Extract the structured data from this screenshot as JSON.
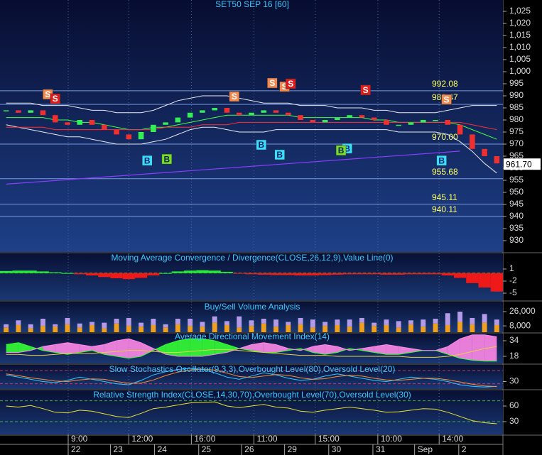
{
  "chart_data": [
    {
      "type": "line",
      "title": "SET50 SEP 16  [60]",
      "x": [
        0,
        1,
        2,
        3,
        4,
        5,
        6,
        7,
        8,
        9,
        10,
        11,
        12,
        13,
        14,
        15,
        16,
        17,
        18,
        19,
        20,
        21,
        22,
        23,
        24,
        25,
        26,
        27,
        28,
        29,
        30,
        31,
        32,
        33,
        34,
        35,
        36,
        37,
        38,
        39,
        40
      ],
      "xlim": [
        -0.5,
        40.5
      ],
      "values": [
        984,
        983,
        984,
        982,
        979,
        978,
        980,
        978,
        976,
        974,
        972,
        975,
        978,
        979,
        981,
        983,
        984,
        985,
        983,
        982,
        983,
        984,
        983,
        982,
        980,
        979,
        980,
        981,
        982,
        981,
        980,
        978,
        978,
        979,
        980,
        980,
        978,
        974,
        968,
        965,
        962
      ],
      "up_color": "#33ee55",
      "down_color": "#ee3030",
      "series": [
        {
          "color": "#e8e8f0",
          "values": [
            987,
            987,
            987,
            986,
            986,
            986,
            985,
            984,
            984,
            983,
            983,
            983,
            984,
            986,
            988,
            989,
            990,
            990,
            990,
            989,
            988,
            987,
            987,
            987,
            986,
            986,
            986,
            985,
            985,
            985,
            984,
            984,
            983,
            983,
            983,
            983,
            984,
            985,
            986,
            986,
            986
          ]
        },
        {
          "color": "#e8e8f0",
          "values": [
            978,
            977,
            976,
            975,
            974,
            973,
            973,
            972,
            971,
            970,
            970,
            970,
            971,
            972,
            974,
            976,
            977,
            977,
            976,
            975,
            975,
            975,
            976,
            976,
            976,
            976,
            976,
            976,
            976,
            976,
            976,
            976,
            975,
            975,
            975,
            975,
            974,
            971,
            967,
            962,
            958
          ]
        },
        {
          "color": "#44ff44",
          "values": [
            981,
            981,
            981,
            981,
            980,
            980,
            979,
            979,
            978,
            977,
            976,
            976,
            977,
            977,
            978,
            979,
            980,
            981,
            982,
            982,
            982,
            982,
            982,
            982,
            981,
            981,
            981,
            981,
            981,
            981,
            980,
            980,
            979,
            979,
            979,
            979,
            979,
            978,
            976,
            974,
            972
          ]
        },
        {
          "color": "#ff3030",
          "values": [
            977,
            977,
            977,
            977,
            976,
            976,
            976,
            976,
            976,
            976,
            976,
            976,
            976,
            977,
            977,
            977,
            978,
            978,
            978,
            979,
            979,
            979,
            979,
            979,
            979,
            979,
            979,
            979,
            979,
            979,
            979,
            979,
            979,
            979,
            979,
            979,
            979,
            979,
            978,
            977,
            976
          ]
        }
      ],
      "trend": {
        "color": "#8a3cff",
        "x": [
          0,
          37
        ],
        "values": [
          953.4,
          967.1
        ]
      },
      "price_levels": [
        992.08,
        986.47,
        {
          "value": 970,
          "label": "970.00"
        },
        955.68,
        945.11,
        940.11
      ],
      "last_price": {
        "value": 961.7,
        "label": "961.70"
      },
      "signals": [
        {
          "x": 3.4,
          "price": 990.6,
          "label": "S",
          "color": "#f08a50"
        },
        {
          "x": 4.0,
          "price": 988.8,
          "label": "S",
          "color": "#e01c1c"
        },
        {
          "x": 18.6,
          "price": 989.7,
          "label": "S",
          "color": "#f08a50"
        },
        {
          "x": 21.7,
          "price": 995.3,
          "label": "S",
          "color": "#f08a50"
        },
        {
          "x": 22.7,
          "price": 993.8,
          "label": "S",
          "color": "#f08a50"
        },
        {
          "x": 23.2,
          "price": 995.0,
          "label": "S",
          "color": "#e01c1c"
        },
        {
          "x": 29.3,
          "price": 992.4,
          "label": "S",
          "color": "#e01c1c"
        },
        {
          "x": 35.9,
          "price": 988.5,
          "label": "S",
          "color": "#f08a50"
        },
        {
          "x": 11.5,
          "price": 963.2,
          "label": "B",
          "color": "#38e0ff"
        },
        {
          "x": 13.1,
          "price": 963.8,
          "label": "B",
          "color": "#77e022"
        },
        {
          "x": 20.8,
          "price": 969.7,
          "label": "B",
          "color": "#38e0ff"
        },
        {
          "x": 22.3,
          "price": 965.6,
          "label": "B",
          "color": "#38e0ff"
        },
        {
          "x": 27.8,
          "price": 968.2,
          "label": "B",
          "color": "#38e0ff"
        },
        {
          "x": 27.3,
          "price": 967.4,
          "label": "B",
          "color": "#77e022"
        },
        {
          "x": 35.5,
          "price": 963.2,
          "label": "B",
          "color": "#38e0ff"
        }
      ],
      "ylim": [
        925.3,
        1029.7
      ],
      "yticks": [
        930,
        935,
        940,
        945,
        950,
        955,
        960,
        965,
        970,
        975,
        980,
        985,
        990,
        995,
        {
          "value": 1000,
          "label": "1,000"
        },
        {
          "value": 1005,
          "label": "1,005"
        },
        {
          "value": 1010,
          "label": "1,010"
        },
        {
          "value": 1015,
          "label": "1,015"
        },
        {
          "value": 1020,
          "label": "1,020"
        },
        {
          "value": 1025,
          "label": "1,025"
        }
      ],
      "xticks": [
        {
          "value": 5.06,
          "label": "9:00"
        },
        {
          "value": 10.0,
          "label": "12:00"
        },
        {
          "value": 15.1,
          "label": "16:00"
        },
        {
          "value": 20.2,
          "label": "11:00"
        },
        {
          "value": 25.2,
          "label": "15:00"
        },
        {
          "value": 30.3,
          "label": "10:00"
        },
        {
          "value": 35.3,
          "label": "14:00"
        }
      ],
      "day_ticks": [
        {
          "value": 5.06,
          "label": "22"
        },
        {
          "value": 8.5,
          "label": "23"
        },
        {
          "value": 12.1,
          "label": "24"
        },
        {
          "value": 15.7,
          "label": "25"
        },
        {
          "value": 19.2,
          "label": "26"
        },
        {
          "value": 22.7,
          "label": "29"
        },
        {
          "value": 26.3,
          "label": "30"
        },
        {
          "value": 29.9,
          "label": "31"
        },
        {
          "value": 33.3,
          "label": "Sep"
        },
        {
          "value": 36.9,
          "label": "2"
        }
      ],
      "grid": true
    },
    {
      "type": "bar",
      "title": "Moving Average Convergence / Divergence(CLOSE,26,12,9),Value Line(0)",
      "values": [
        0.5,
        0.6,
        0.6,
        0.4,
        0.2,
        0,
        -0.3,
        -0.6,
        -1,
        -1.3,
        -1.5,
        -1.2,
        -0.6,
        0,
        0.4,
        0.6,
        0.7,
        0.6,
        0.3,
        -0.1,
        -0.3,
        -0.4,
        -0.5,
        -0.5,
        -0.6,
        -0.6,
        -0.5,
        -0.4,
        -0.3,
        -0.3,
        -0.3,
        -0.4,
        -0.4,
        -0.3,
        -0.3,
        -0.3,
        -0.6,
        -1.2,
        -2.5,
        -3.6,
        -4.6
      ],
      "up_color": "#22ee33",
      "down_color": "#ee1a1a",
      "ylim": [
        -6.76,
        4.88
      ],
      "yticks": [
        1,
        -2,
        -5
      ]
    },
    {
      "type": "stacked_bar",
      "title": "Buy/Sell Volume Analysis",
      "series": [
        {
          "color": "#f0a020",
          "values": [
            6000,
            9000,
            5000,
            8000,
            7000,
            10000,
            6000,
            9000,
            5000,
            11000,
            8000,
            7000,
            9000,
            6000,
            10000,
            8000,
            7000,
            12000,
            9000,
            6000,
            8000,
            11000,
            7000,
            9000,
            10000,
            6000,
            8000,
            9000,
            7000,
            12000,
            8000,
            9000,
            6000,
            10000,
            7000,
            11000,
            9000,
            13000,
            10000,
            12000,
            9000
          ]
        },
        {
          "color": "#b49be8",
          "values": [
            4000,
            6000,
            5000,
            9000,
            3000,
            8000,
            5000,
            4000,
            7000,
            6000,
            10000,
            5000,
            8000,
            4000,
            7000,
            9000,
            6000,
            8000,
            5000,
            14000,
            7000,
            6000,
            9000,
            4000,
            8000,
            10000,
            5000,
            7000,
            9000,
            6000,
            4000,
            7000,
            8000,
            5000,
            9000,
            6000,
            15000,
            13000,
            8000,
            11000,
            7000
          ]
        }
      ],
      "ylim": [
        0,
        38600
      ],
      "yticks": [
        {
          "value": 26000,
          "label": "26,000"
        },
        {
          "value": 8000,
          "label": "8,000"
        }
      ]
    },
    {
      "type": "area",
      "title": "Average Directional Movement Index(14)",
      "series": [
        {
          "color": "#33ff33",
          "values": [
            30,
            32,
            28,
            24,
            22,
            20,
            22,
            24,
            20,
            18,
            16,
            18,
            24,
            30,
            34,
            36,
            36,
            34,
            30,
            26,
            24,
            22,
            22,
            24,
            26,
            22,
            20,
            22,
            26,
            24,
            22,
            20,
            20,
            22,
            24,
            24,
            20,
            16,
            14,
            13,
            13
          ]
        },
        {
          "color": "#ff88e8",
          "values": [
            22,
            22,
            24,
            28,
            30,
            32,
            30,
            28,
            30,
            34,
            36,
            32,
            26,
            20,
            18,
            18,
            18,
            20,
            22,
            26,
            30,
            32,
            30,
            26,
            24,
            28,
            30,
            28,
            24,
            26,
            28,
            30,
            28,
            26,
            24,
            24,
            28,
            36,
            40,
            40,
            38
          ]
        },
        {
          "color": "#e8d040",
          "values": [
            20,
            20,
            19,
            19,
            20,
            21,
            21,
            21,
            22,
            23,
            24,
            24,
            23,
            22,
            22,
            23,
            24,
            25,
            25,
            24,
            23,
            22,
            21,
            20,
            19,
            19,
            19,
            18,
            18,
            18,
            18,
            18,
            18,
            17,
            17,
            17,
            18,
            20,
            23,
            26,
            28
          ]
        }
      ],
      "ylim": [
        10.7,
        41.3
      ],
      "yticks": [
        34,
        18
      ]
    },
    {
      "type": "line",
      "title": "Slow Stochastics Oscillator(9,3,3),Overbought Level(80),Oversold Level(20)",
      "series": [
        {
          "color": "#30c8ff",
          "values": [
            60,
            50,
            40,
            30,
            25,
            35,
            50,
            40,
            30,
            20,
            15,
            35,
            60,
            75,
            85,
            90,
            85,
            70,
            50,
            40,
            55,
            70,
            60,
            45,
            35,
            40,
            55,
            65,
            55,
            45,
            35,
            30,
            40,
            50,
            45,
            40,
            30,
            15,
            8,
            5,
            8
          ]
        },
        {
          "color": "#ff8c30",
          "values": [
            65,
            57,
            47,
            40,
            32,
            30,
            37,
            42,
            40,
            30,
            22,
            23,
            37,
            57,
            73,
            83,
            87,
            82,
            68,
            53,
            48,
            55,
            62,
            58,
            47,
            40,
            43,
            53,
            58,
            55,
            45,
            37,
            35,
            40,
            45,
            45,
            38,
            28,
            18,
            10,
            7
          ]
        }
      ],
      "levels": [
        80,
        20
      ],
      "level_color": "#d03060",
      "ylim": [
        -4,
        106
      ],
      "yticks": [
        30
      ]
    },
    {
      "type": "line",
      "title": "Relative Strength Index(CLOSE,14,30,70),Overbought Level(70),Oversold Level(30)",
      "series": [
        {
          "color": "#e8e030",
          "values": [
            60,
            58,
            61,
            55,
            48,
            47,
            52,
            50,
            45,
            40,
            38,
            46,
            55,
            58,
            62,
            66,
            67,
            68,
            60,
            57,
            60,
            63,
            58,
            56,
            50,
            48,
            52,
            55,
            58,
            55,
            52,
            48,
            49,
            52,
            55,
            54,
            48,
            40,
            32,
            28,
            26
          ]
        }
      ],
      "levels": [
        70,
        30
      ],
      "level_color": "#40b040",
      "ylim": [
        5.5,
        90
      ],
      "yticks": [
        60,
        30
      ]
    }
  ]
}
